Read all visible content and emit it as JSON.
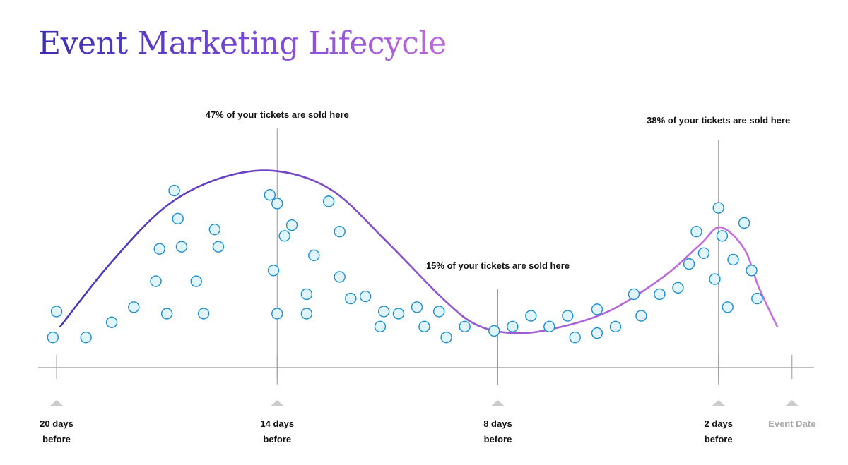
{
  "title": "Event Marketing Lifecycle",
  "colors": {
    "title_start": "#3b2fb0",
    "title_end": "#c06ad8",
    "curve_start": "#4a34b8",
    "curve_end": "#c46ee0",
    "dot_fill": "#dff4fb",
    "dot_stroke": "#1d8fd0",
    "axis": "#999999",
    "marker": "#cccccc"
  },
  "chart_data": {
    "type": "scatter",
    "xlabel": "",
    "ylabel": "",
    "xlim": [
      -20.5,
      0.6
    ],
    "ylim": [
      0,
      100
    ],
    "ticks": [
      {
        "x": -20,
        "label_line1": "20 days",
        "label_line2": "before",
        "muted": false
      },
      {
        "x": -14,
        "label_line1": "14 days",
        "label_line2": "before",
        "muted": false
      },
      {
        "x": -8,
        "label_line1": "8 days",
        "label_line2": "before",
        "muted": false
      },
      {
        "x": -2,
        "label_line1": "2 days",
        "label_line2": "before",
        "muted": false
      },
      {
        "x": 0,
        "label_line1": "Event Date",
        "label_line2": "",
        "muted": true
      }
    ],
    "annotations": [
      {
        "x": -14,
        "text": "47% of your tickets are sold here"
      },
      {
        "x": -8,
        "text": "15% of your tickets are sold here"
      },
      {
        "x": -2,
        "text": "38% of your tickets are sold here"
      }
    ],
    "curve": [
      [
        -19.9,
        19
      ],
      [
        -18.5,
        49
      ],
      [
        -17,
        75
      ],
      [
        -15.5,
        88
      ],
      [
        -14,
        91
      ],
      [
        -12.5,
        82
      ],
      [
        -11,
        58
      ],
      [
        -9.5,
        32
      ],
      [
        -8.6,
        20
      ],
      [
        -7.6,
        16
      ],
      [
        -6.5,
        18
      ],
      [
        -5,
        26
      ],
      [
        -3.5,
        42
      ],
      [
        -2.5,
        57
      ],
      [
        -1.95,
        65
      ],
      [
        -1.3,
        55
      ],
      [
        -0.9,
        37
      ],
      [
        -0.4,
        19
      ]
    ],
    "points": [
      [
        -20.1,
        14
      ],
      [
        -20,
        26
      ],
      [
        -19.2,
        14
      ],
      [
        -18.5,
        21
      ],
      [
        -17.9,
        28
      ],
      [
        -17.3,
        40
      ],
      [
        -17.2,
        55
      ],
      [
        -17,
        25
      ],
      [
        -16.8,
        82
      ],
      [
        -16.7,
        69
      ],
      [
        -16.6,
        56
      ],
      [
        -16.2,
        40
      ],
      [
        -16,
        25
      ],
      [
        -15.7,
        64
      ],
      [
        -15.6,
        56
      ],
      [
        -14.2,
        80
      ],
      [
        -14.1,
        45
      ],
      [
        -14,
        76
      ],
      [
        -14,
        25
      ],
      [
        -13.8,
        61
      ],
      [
        -13.6,
        66
      ],
      [
        -13.2,
        34
      ],
      [
        -13.2,
        25
      ],
      [
        -13,
        52
      ],
      [
        -12.6,
        77
      ],
      [
        -12.3,
        63
      ],
      [
        -12.3,
        42
      ],
      [
        -12,
        32
      ],
      [
        -11.6,
        33
      ],
      [
        -11.2,
        19
      ],
      [
        -11.1,
        26
      ],
      [
        -10.7,
        25
      ],
      [
        -10.2,
        28
      ],
      [
        -10,
        19
      ],
      [
        -9.6,
        26
      ],
      [
        -9.4,
        14
      ],
      [
        -8.9,
        19
      ],
      [
        -8.1,
        17
      ],
      [
        -7.6,
        19
      ],
      [
        -7.1,
        24
      ],
      [
        -6.6,
        19
      ],
      [
        -6.1,
        24
      ],
      [
        -5.9,
        14
      ],
      [
        -5.3,
        27
      ],
      [
        -5.3,
        16
      ],
      [
        -4.8,
        19
      ],
      [
        -4.3,
        34
      ],
      [
        -4.1,
        24
      ],
      [
        -3.6,
        34
      ],
      [
        -3.1,
        37
      ],
      [
        -2.8,
        48
      ],
      [
        -2.6,
        63
      ],
      [
        -2.4,
        53
      ],
      [
        -2.1,
        41
      ],
      [
        -2,
        74
      ],
      [
        -1.9,
        61
      ],
      [
        -1.75,
        28
      ],
      [
        -1.6,
        50
      ],
      [
        -1.3,
        67
      ],
      [
        -1.1,
        45
      ],
      [
        -0.95,
        32
      ]
    ]
  }
}
